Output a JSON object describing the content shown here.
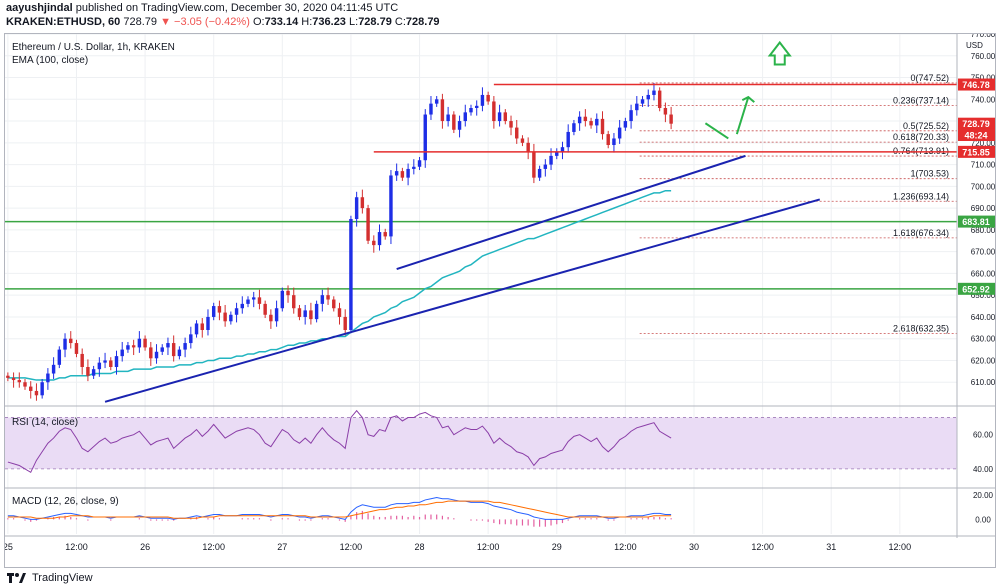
{
  "header": {
    "author": "aayushjindal",
    "published": "published on TradingView.com, December 30, 2020 04:11:45 UTC",
    "symbol": "KRAKEN:ETHUSD, 60",
    "price": "728.79",
    "change": "−3.05 (−0.42%)",
    "o_label": "O:",
    "o_value": "733.14",
    "h_label": "H:",
    "h_value": "736.23",
    "l_label": "L:",
    "l_value": "728.79",
    "c_label": "C:",
    "c_value": "728.79"
  },
  "footer": {
    "brand": "TradingView"
  },
  "colors": {
    "up": "#1e2ee6",
    "down": "#d32f2f",
    "ema": "#22b5c0",
    "trend": "#1a23b0",
    "resistance": "#e52d2d",
    "support": "#3aa543",
    "arrow": "#2bb34a",
    "rsi": "#8b3fa8",
    "rsi_band": "#eadcf5",
    "macd": "#2962ff",
    "signal": "#ff6d00",
    "hist": "#e35fa0",
    "fib": "#c85050"
  },
  "chart_data": [
    {
      "type": "candlestick",
      "title": "Ethereum / U.S. Dollar, 1h, KRAKEN",
      "indicator": "EMA (100, close)",
      "y_axis_unit": "USD",
      "ylim": [
        600,
        770
      ],
      "y_ticks": [
        610,
        620,
        630,
        640,
        650,
        660,
        670,
        680,
        690,
        700,
        710,
        720,
        730,
        740,
        750,
        760,
        770
      ],
      "x_ticks": [
        {
          "label": "25",
          "t": 0
        },
        {
          "label": "12:00",
          "t": 12
        },
        {
          "label": "26",
          "t": 24
        },
        {
          "label": "12:00",
          "t": 36
        },
        {
          "label": "27",
          "t": 48
        },
        {
          "label": "12:00",
          "t": 60
        },
        {
          "label": "28",
          "t": 72
        },
        {
          "label": "12:00",
          "t": 84
        },
        {
          "label": "29",
          "t": 96
        },
        {
          "label": "12:00",
          "t": 108
        },
        {
          "label": "30",
          "t": 120
        },
        {
          "label": "12:00",
          "t": 132
        },
        {
          "label": "31",
          "t": 144
        },
        {
          "label": "12:00",
          "t": 156
        }
      ],
      "x_range_hours": [
        -0.5,
        166
      ],
      "grid": true,
      "closes": [
        612,
        611,
        610,
        608,
        606,
        604,
        610,
        614,
        618,
        625,
        630,
        628,
        623,
        617,
        613,
        616,
        619,
        620,
        617,
        622,
        625,
        627,
        626,
        630,
        626,
        621,
        624,
        626,
        628,
        622,
        625,
        628,
        632,
        637,
        634,
        640,
        645,
        642,
        638,
        641,
        644,
        646,
        648,
        649,
        646,
        641,
        638,
        644,
        652,
        650,
        644,
        640,
        643,
        639,
        646,
        650,
        648,
        644,
        640,
        634,
        685,
        695,
        690,
        675,
        673,
        679,
        677,
        705,
        707,
        704,
        708,
        709,
        712,
        733,
        738,
        740,
        730,
        733,
        726,
        730,
        734,
        736,
        737,
        742,
        739,
        730,
        734,
        730,
        727,
        722,
        720,
        716,
        704,
        708,
        710,
        714,
        716,
        718,
        725,
        729,
        732,
        730,
        728,
        731,
        724,
        719,
        722,
        727,
        730,
        735,
        738,
        740,
        742,
        744,
        736,
        733,
        728.79
      ],
      "ema_start_hour": 0,
      "ema": [
        612,
        612,
        612,
        612,
        611.5,
        611,
        611,
        611,
        611,
        612,
        612,
        613,
        613,
        613,
        613,
        614,
        614,
        614,
        614,
        615,
        615,
        615,
        616,
        616,
        616,
        616,
        617,
        617,
        617,
        617,
        618,
        618,
        618,
        619,
        619,
        620,
        620,
        621,
        621,
        621,
        622,
        622,
        623,
        623,
        624,
        624,
        625,
        625,
        626,
        627,
        627,
        628,
        628,
        629,
        629,
        630,
        630,
        631,
        631,
        631,
        633,
        635,
        637,
        638,
        640,
        641,
        642,
        644,
        645,
        647,
        648,
        649,
        651,
        653,
        654,
        656,
        658,
        659,
        660,
        661,
        663,
        664,
        666,
        668,
        669,
        670,
        671,
        672,
        673,
        674,
        675,
        676,
        676,
        677,
        678,
        679,
        680,
        681,
        682,
        683,
        684,
        685,
        686,
        687,
        688,
        689,
        690,
        691,
        692,
        693,
        694,
        695,
        696,
        697,
        697,
        698,
        698
      ],
      "resistance_lines": [
        {
          "value": 746.78,
          "from_hour": 85,
          "to_hour": 162
        },
        {
          "value": 715.85,
          "from_hour": 64,
          "to_hour": 162
        }
      ],
      "support_lines": [
        {
          "value": 683.81
        },
        {
          "value": 652.92
        }
      ],
      "trend_lines": [
        {
          "from": [
            17,
            601
          ],
          "to": [
            142,
            694
          ]
        },
        {
          "from": [
            68,
            662
          ],
          "to": [
            129,
            714
          ]
        }
      ],
      "fibonacci": [
        {
          "label": "0(747.52)",
          "value": 747.52
        },
        {
          "label": "0.236(737.14)",
          "value": 737.14
        },
        {
          "label": "0.5(725.52)",
          "value": 725.52
        },
        {
          "label": "0.618(720.33)",
          "value": 720.33
        },
        {
          "label": "0.764(713.91)",
          "value": 713.91
        },
        {
          "label": "1(703.53)",
          "value": 703.53
        },
        {
          "label": "1.236(693.14)",
          "value": 693.14
        },
        {
          "label": "1.618(676.34)",
          "value": 676.34
        },
        {
          "label": "2.618(632.35)",
          "value": 632.35
        }
      ],
      "price_tags": [
        {
          "label": "746.78",
          "value": 746.78,
          "color": "#e52d2d"
        },
        {
          "label": "728.79",
          "value": 728.79,
          "color": "#e52d2d"
        },
        {
          "label": "48:24",
          "value": 723.6,
          "color": "#e52d2d"
        },
        {
          "label": "715.85",
          "value": 715.85,
          "color": "#e52d2d"
        },
        {
          "label": "683.81",
          "value": 683.81,
          "color": "#3aa543"
        },
        {
          "label": "652.92",
          "value": 652.92,
          "color": "#3aa543"
        }
      ]
    },
    {
      "type": "line",
      "title": "RSI (14, close)",
      "ylim": [
        30,
        75
      ],
      "y_ticks": [
        40,
        60
      ],
      "band": [
        40,
        70
      ],
      "values": [
        44,
        43,
        42,
        40,
        38,
        45,
        50,
        55,
        58,
        62,
        64,
        63,
        58,
        52,
        50,
        53,
        56,
        58,
        55,
        56,
        58,
        59,
        60,
        62,
        58,
        54,
        56,
        57,
        58,
        52,
        55,
        58,
        60,
        63,
        59,
        62,
        66,
        62,
        58,
        60,
        62,
        63,
        64,
        63,
        60,
        55,
        53,
        58,
        63,
        61,
        57,
        55,
        58,
        55,
        60,
        64,
        60,
        57,
        55,
        52,
        70,
        74,
        70,
        60,
        59,
        63,
        62,
        70,
        71,
        68,
        70,
        70,
        72,
        73,
        71,
        70,
        64,
        65,
        60,
        62,
        64,
        63,
        63,
        65,
        61,
        55,
        58,
        55,
        53,
        50,
        49,
        47,
        42,
        46,
        47,
        49,
        50,
        51,
        56,
        59,
        60,
        58,
        56,
        58,
        53,
        50,
        53,
        57,
        59,
        62,
        64,
        65,
        66,
        67,
        62,
        60,
        58
      ]
    },
    {
      "type": "line",
      "title": "MACD (12, 26, close, 9)",
      "ylim": [
        -12,
        25
      ],
      "y_ticks": [
        0,
        20
      ],
      "macd": [
        3,
        3,
        2,
        1,
        0,
        0,
        1,
        2,
        3,
        4,
        5,
        5,
        4,
        3,
        2,
        2,
        2,
        2,
        1,
        2,
        2,
        2,
        2,
        3,
        2,
        1,
        1,
        1,
        1,
        0,
        1,
        1,
        2,
        3,
        2,
        3,
        4,
        4,
        3,
        3,
        3,
        4,
        4,
        4,
        4,
        3,
        2,
        3,
        4,
        4,
        3,
        2,
        2,
        1,
        2,
        3,
        3,
        2,
        1,
        0,
        6,
        10,
        12,
        11,
        10,
        10,
        10,
        12,
        13,
        13,
        13,
        14,
        14,
        16,
        17,
        18,
        17,
        17,
        16,
        15,
        15,
        14,
        14,
        14,
        13,
        11,
        10,
        9,
        8,
        6,
        5,
        4,
        2,
        1,
        0,
        0,
        0,
        0,
        1,
        2,
        3,
        3,
        3,
        3,
        2,
        1,
        1,
        2,
        2,
        3,
        3,
        3,
        4,
        5,
        5,
        4,
        4
      ],
      "signal": [
        2,
        2,
        2,
        2,
        2,
        1,
        1,
        1,
        1,
        2,
        2,
        3,
        3,
        3,
        3,
        2,
        2,
        2,
        2,
        2,
        2,
        2,
        2,
        2,
        2,
        2,
        2,
        2,
        2,
        1,
        1,
        1,
        1,
        1,
        2,
        2,
        2,
        3,
        3,
        3,
        3,
        3,
        3,
        3,
        3,
        3,
        3,
        3,
        3,
        3,
        3,
        3,
        3,
        2,
        2,
        2,
        2,
        2,
        2,
        2,
        3,
        4,
        5,
        6,
        7,
        8,
        8,
        9,
        10,
        10,
        11,
        11,
        12,
        12,
        13,
        14,
        14,
        15,
        15,
        15,
        15,
        15,
        15,
        15,
        15,
        14,
        14,
        13,
        12,
        11,
        10,
        9,
        8,
        7,
        6,
        5,
        4,
        3,
        2,
        2,
        2,
        2,
        2,
        2,
        2,
        2,
        2,
        2,
        2,
        2,
        2,
        2,
        2,
        3,
        3,
        3,
        3
      ]
    }
  ],
  "annotations": {
    "bearish_arrow": "down-right",
    "bullish_arrows": [
      "up-right",
      "up"
    ]
  }
}
